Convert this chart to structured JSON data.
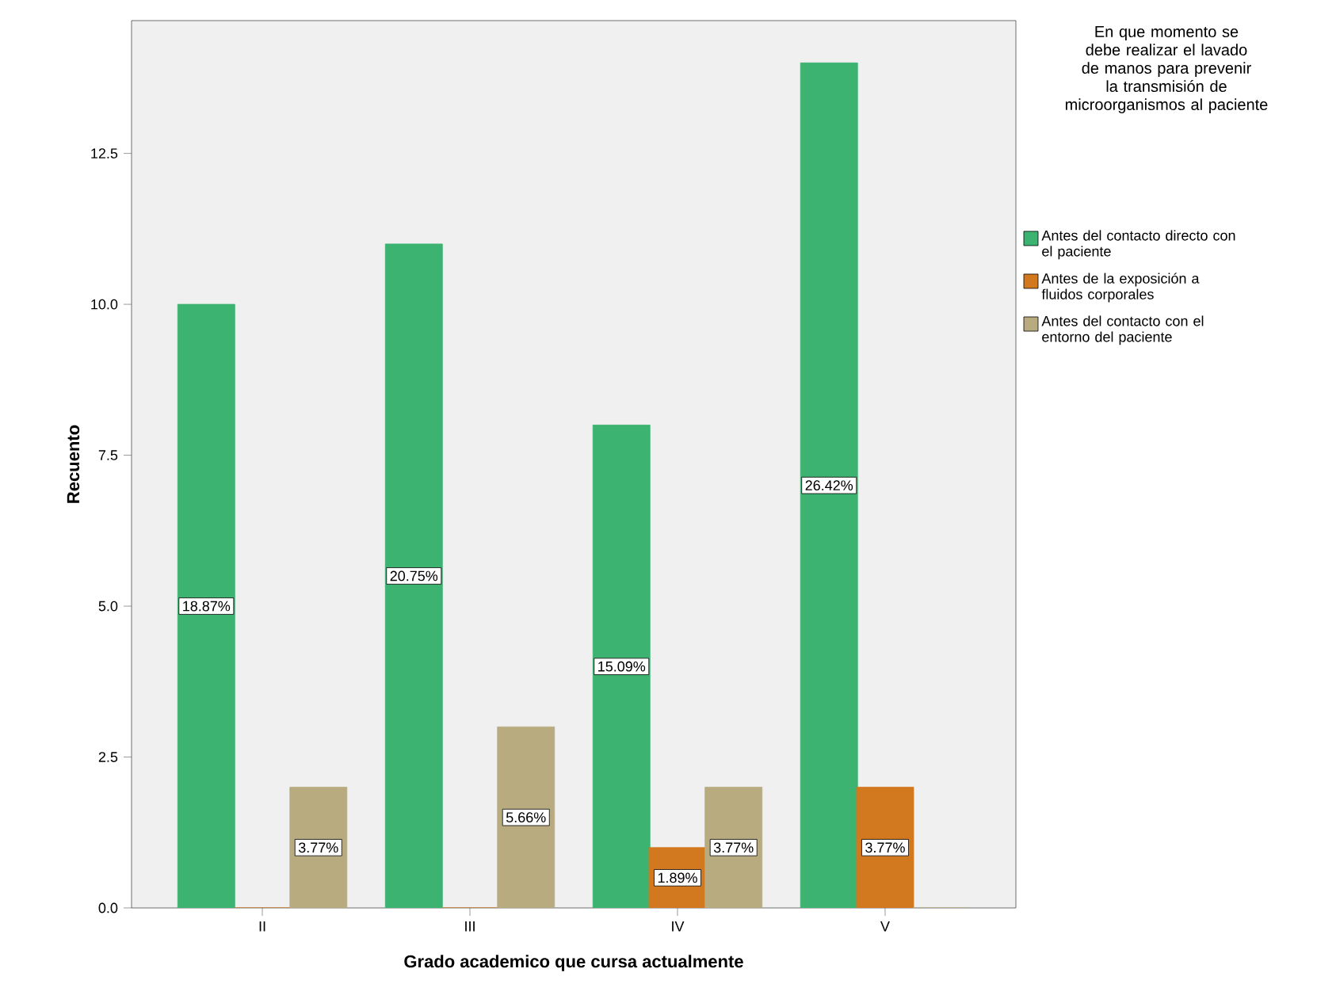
{
  "chart_data": {
    "type": "bar",
    "xlabel": "Grado academico que cursa actualmente",
    "ylabel": "Recuento",
    "legend_title": "En que momento se debe realizar el lavado de manos para prevenir la transmisión de microorganismos al paciente",
    "legend": "right",
    "categories": [
      "II",
      "III",
      "IV",
      "V"
    ],
    "ylim": [
      0,
      14.7
    ],
    "yticks": [
      {
        "value": 0,
        "label": "0.0"
      },
      {
        "value": 2.5,
        "label": "2.5"
      },
      {
        "value": 5,
        "label": "5.0"
      },
      {
        "value": 7.5,
        "label": "7.5"
      },
      {
        "value": 10,
        "label": "10.0"
      },
      {
        "value": 12.5,
        "label": "12.5"
      }
    ],
    "series": [
      {
        "name": "Antes del contacto directo con el paciente",
        "color": "#3cb371",
        "values": [
          10,
          11,
          8,
          14
        ]
      },
      {
        "name": "Antes de la exposición a fluidos corporales",
        "color": "#d2781e",
        "values": [
          0,
          0,
          1,
          2
        ]
      },
      {
        "name": "Antes del contacto con el entorno del paciente",
        "color": "#b8ab80",
        "values": [
          2,
          3,
          2,
          0
        ]
      }
    ],
    "annotations": [
      "18.87%",
      "3.77%",
      "20.75%",
      "5.66%",
      "15.09%",
      "1.89%",
      "3.77%",
      "26.42%",
      "3.77%"
    ]
  }
}
